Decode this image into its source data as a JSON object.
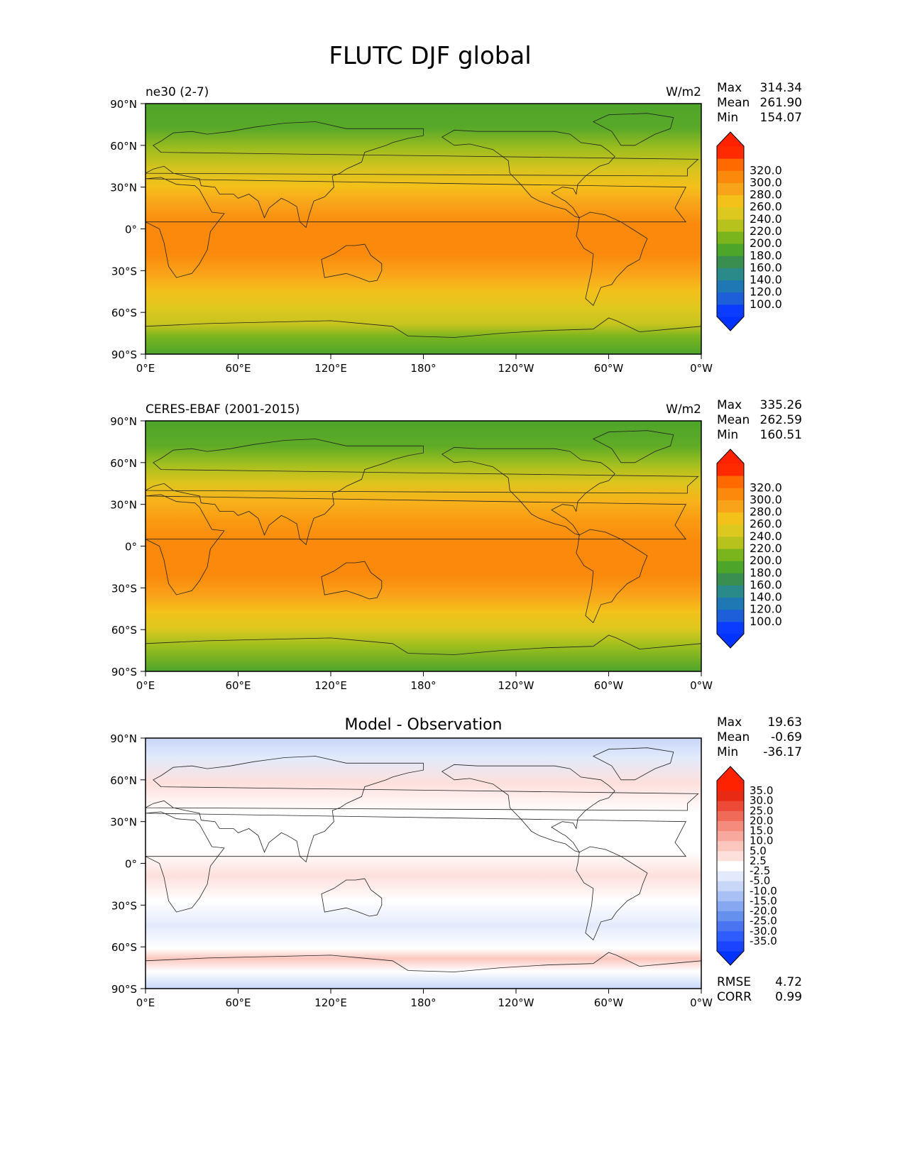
{
  "figure": {
    "title": "FLUTC DJF global",
    "x_ticks": [
      "0°E",
      "60°E",
      "120°E",
      "180°",
      "120°W",
      "60°W",
      "0°W"
    ],
    "y_ticks": [
      "90°N",
      "60°N",
      "30°N",
      "0°",
      "30°S",
      "60°S",
      "90°S"
    ]
  },
  "panels": [
    {
      "id": "model",
      "left_label": "ne30 (2-7)",
      "center_label": "",
      "units": "W/m2",
      "stats": [
        {
          "label": "Max",
          "value": "314.34"
        },
        {
          "label": "Mean",
          "value": "261.90"
        },
        {
          "label": "Min",
          "value": "154.07"
        }
      ],
      "colorbar": {
        "levels": [
          "100.0",
          "120.0",
          "140.0",
          "160.0",
          "180.0",
          "200.0",
          "220.0",
          "240.0",
          "260.0",
          "280.0",
          "300.0",
          "320.0"
        ],
        "colors": [
          "#0a3cff",
          "#1c5fd8",
          "#1f77b4",
          "#2a8a8a",
          "#3a8f50",
          "#4da52a",
          "#7ab51e",
          "#b8c21c",
          "#dcc81e",
          "#f4c01a",
          "#f9a31a",
          "#fb8a0c",
          "#ff6a00",
          "#ff2a00"
        ],
        "min_color": "#0033ff",
        "max_color": "#ff2200"
      }
    },
    {
      "id": "obs",
      "left_label": "CERES-EBAF (2001-2015)",
      "center_label": "",
      "units": "W/m2",
      "stats": [
        {
          "label": "Max",
          "value": "335.26"
        },
        {
          "label": "Mean",
          "value": "262.59"
        },
        {
          "label": "Min",
          "value": "160.51"
        }
      ],
      "colorbar": {
        "levels": [
          "100.0",
          "120.0",
          "140.0",
          "160.0",
          "180.0",
          "200.0",
          "220.0",
          "240.0",
          "260.0",
          "280.0",
          "300.0",
          "320.0"
        ],
        "colors": [
          "#0a3cff",
          "#1c5fd8",
          "#1f77b4",
          "#2a8a8a",
          "#3a8f50",
          "#4da52a",
          "#7ab51e",
          "#b8c21c",
          "#dcc81e",
          "#f4c01a",
          "#f9a31a",
          "#fb8a0c",
          "#ff6a00",
          "#ff2a00"
        ],
        "min_color": "#0033ff",
        "max_color": "#ff2200"
      }
    },
    {
      "id": "diff",
      "left_label": "",
      "center_label": "Model - Observation",
      "units": "",
      "stats": [
        {
          "label": "Max",
          "value": "19.63"
        },
        {
          "label": "Mean",
          "value": "-0.69"
        },
        {
          "label": "Min",
          "value": "-36.17"
        }
      ],
      "extra_stats": [
        {
          "label": "RMSE",
          "value": "4.72"
        },
        {
          "label": "CORR",
          "value": "0.99"
        }
      ],
      "colorbar": {
        "levels": [
          "-35.0",
          "-30.0",
          "-25.0",
          "-20.0",
          "-15.0",
          "-10.0",
          "-5.0",
          "-2.5",
          "2.5",
          "5.0",
          "10.0",
          "15.0",
          "20.0",
          "25.0",
          "30.0",
          "35.0"
        ],
        "colors": [
          "#1a44ff",
          "#2f5cff",
          "#4a74f2",
          "#6690ee",
          "#86a8f0",
          "#a8c0f4",
          "#c8d6f8",
          "#e2eafc",
          "#ffffff",
          "#fde0dc",
          "#fbc6bd",
          "#f8a99d",
          "#f48b7c",
          "#f06a58",
          "#ec4a36",
          "#e82a14",
          "#ff2200"
        ],
        "min_color": "#0033ff",
        "max_color": "#ff2200"
      }
    }
  ]
}
